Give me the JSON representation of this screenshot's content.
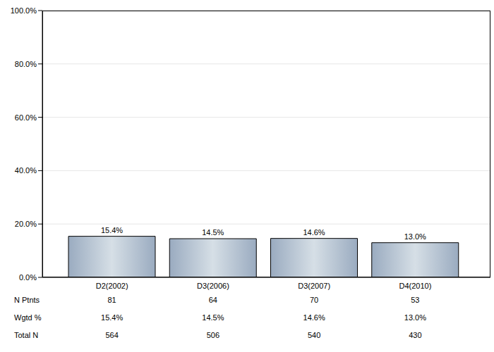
{
  "chart_data": {
    "type": "bar",
    "categories": [
      "D2(2002)",
      "D3(2006)",
      "D3(2007)",
      "D4(2010)"
    ],
    "values": [
      15.4,
      14.5,
      14.6,
      13.0
    ],
    "value_labels": [
      "15.4%",
      "14.5%",
      "14.6%",
      "13.0%"
    ],
    "data_labels": true,
    "color": "#9aabc0",
    "ylim": [
      0,
      100
    ],
    "yticks": [
      {
        "value": 0,
        "label": "0.0%"
      },
      {
        "value": 20,
        "label": "20.0%"
      },
      {
        "value": 40,
        "label": "40.0%"
      },
      {
        "value": 60,
        "label": "60.0%"
      },
      {
        "value": 80,
        "label": "80.0%"
      },
      {
        "value": 100,
        "label": "100.0%"
      }
    ],
    "grid": true,
    "table": {
      "rows": [
        {
          "label": "N Ptnts",
          "values": [
            81,
            64,
            70,
            53
          ]
        },
        {
          "label": "Wgtd %",
          "values": [
            "15.4%",
            "14.5%",
            "14.6%",
            "13.0%"
          ]
        },
        {
          "label": "Total N",
          "values": [
            564,
            506,
            540,
            430
          ]
        }
      ]
    }
  }
}
